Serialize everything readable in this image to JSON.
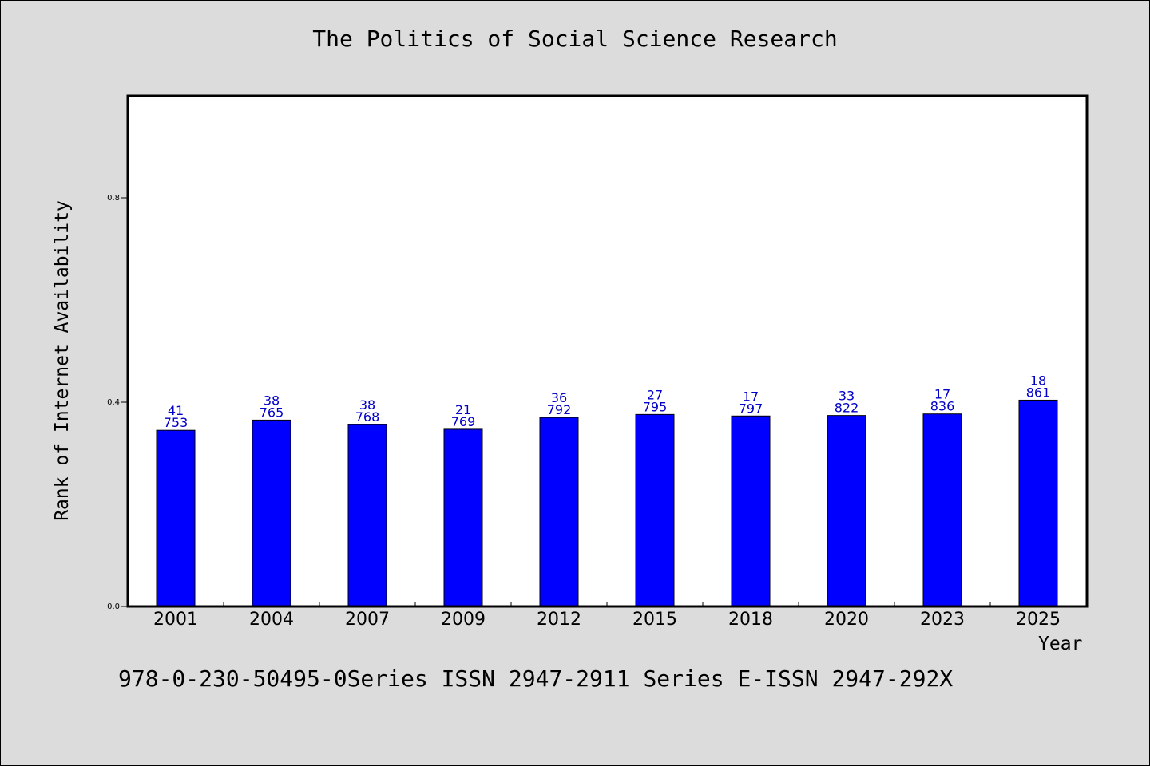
{
  "title": "The Politics of Social Science Research",
  "footer": "978-0-230-50495-0Series ISSN 2947-2911 Series E-ISSN 2947-292X",
  "chart_data": {
    "type": "bar",
    "title": "The Politics of Social Science Research",
    "xlabel": "Year",
    "ylabel": "Rank of Internet Availability",
    "categories": [
      "2001",
      "2004",
      "2007",
      "2009",
      "2012",
      "2015",
      "2018",
      "2020",
      "2023",
      "2025"
    ],
    "values": [
      0.345,
      0.365,
      0.356,
      0.347,
      0.37,
      0.376,
      0.373,
      0.374,
      0.377,
      0.404
    ],
    "label_top": [
      "41",
      "38",
      "38",
      "21",
      "36",
      "27",
      "17",
      "33",
      "17",
      "18"
    ],
    "label_bottom": [
      "753",
      "765",
      "768",
      "769",
      "792",
      "795",
      "797",
      "822",
      "836",
      "861"
    ],
    "ylim": [
      0,
      1.0
    ],
    "yticks": [
      0.0,
      0.4,
      0.8
    ],
    "ytick_labels": [
      "0.0",
      "0.4",
      "0.8"
    ],
    "grid": false,
    "colors": {
      "bar": "#0000ff",
      "label": "#0000c8",
      "plot_bg": "#ffffff",
      "page_bg": "#dcdcdc"
    }
  }
}
